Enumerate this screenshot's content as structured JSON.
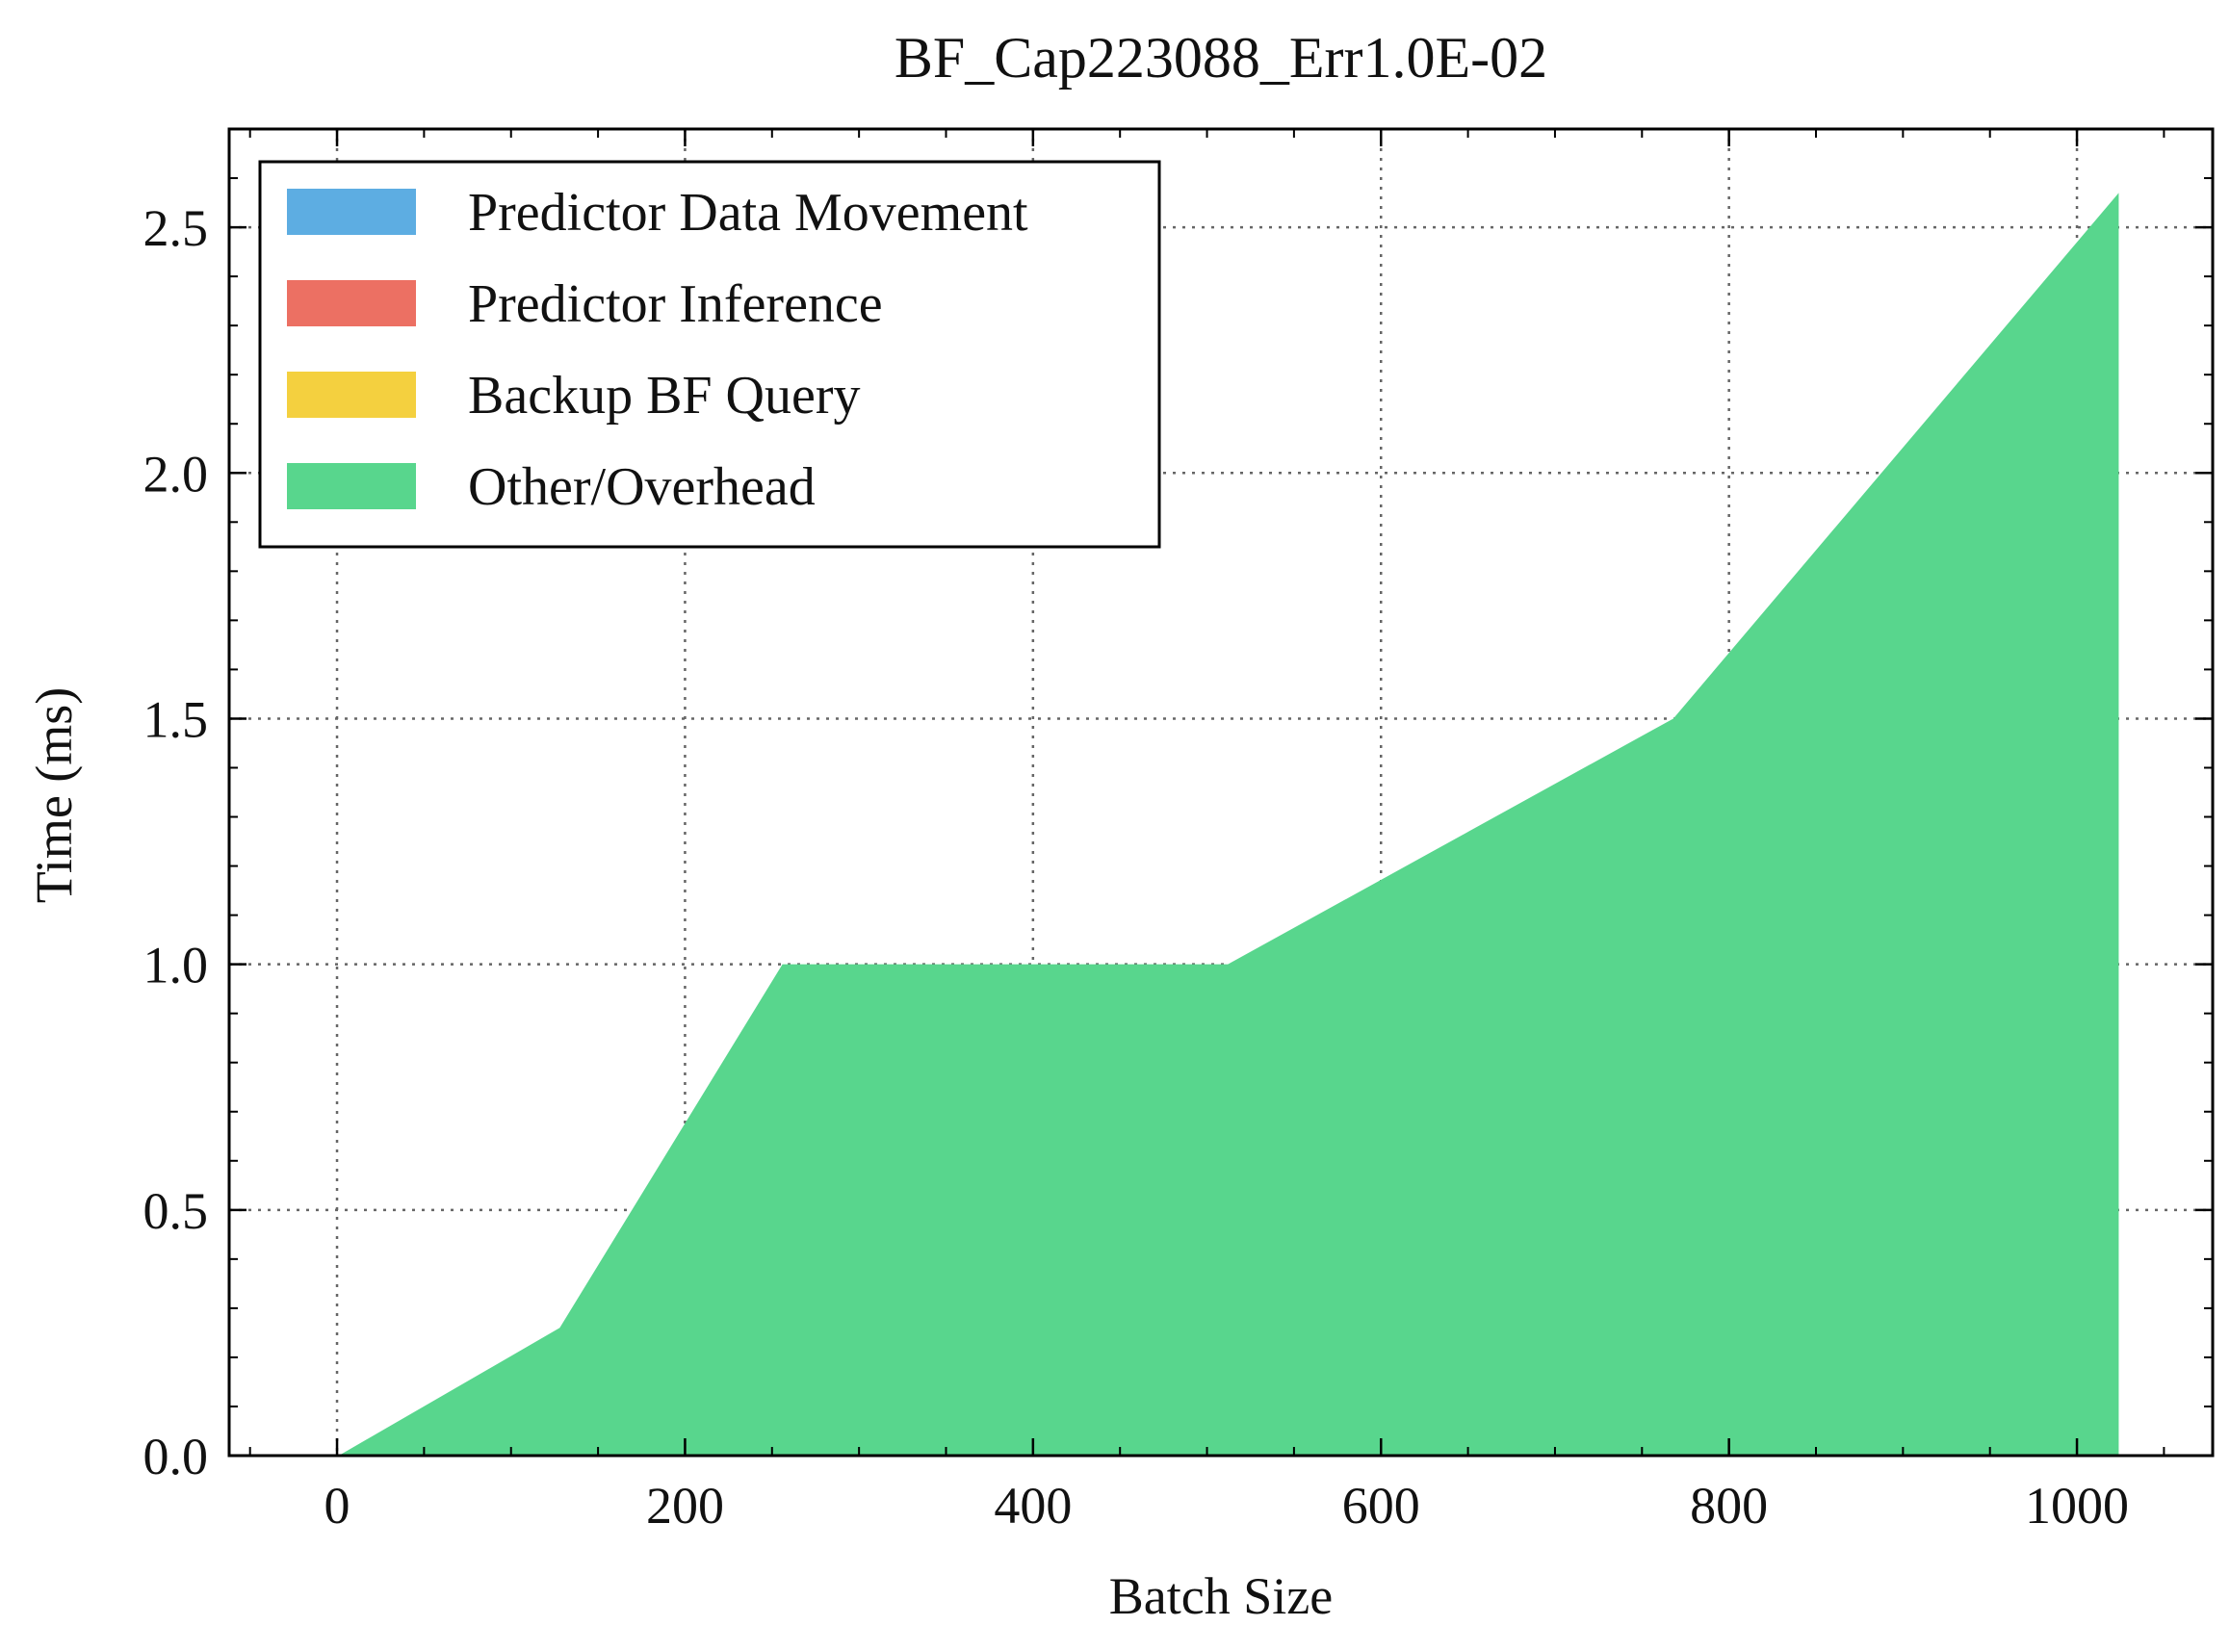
{
  "chart_data": {
    "type": "area",
    "title": "BF_Cap223088_Err1.0E-02",
    "xlabel": "Batch Size",
    "ylabel": "Time (ms)",
    "xlim": [
      -62,
      1078
    ],
    "ylim": [
      0,
      2.7
    ],
    "xticks": [
      0,
      200,
      400,
      600,
      800,
      1000
    ],
    "xtick_labels": [
      "0",
      "200",
      "400",
      "600",
      "800",
      "1000"
    ],
    "yticks": [
      0.0,
      0.5,
      1.0,
      1.5,
      2.0,
      2.5
    ],
    "ytick_labels": [
      "0.0",
      "0.5",
      "1.0",
      "1.5",
      "2.0",
      "2.5"
    ],
    "grid": true,
    "legend_position": "top-left",
    "x": [
      1,
      128,
      256,
      512,
      768,
      1024
    ],
    "series": [
      {
        "name": "Predictor Data Movement",
        "color": "#5dade2",
        "values": [
          0,
          0,
          0,
          0,
          0,
          0
        ]
      },
      {
        "name": "Predictor Inference",
        "color": "#ec7063",
        "values": [
          0,
          0,
          0,
          0,
          0,
          0
        ]
      },
      {
        "name": "Backup BF Query",
        "color": "#f4d03f",
        "values": [
          0,
          0,
          0,
          0,
          0,
          0
        ]
      },
      {
        "name": "Other/Overhead",
        "color": "#58d68d",
        "values": [
          0.0,
          0.26,
          1.0,
          1.0,
          1.5,
          2.57
        ]
      }
    ]
  }
}
